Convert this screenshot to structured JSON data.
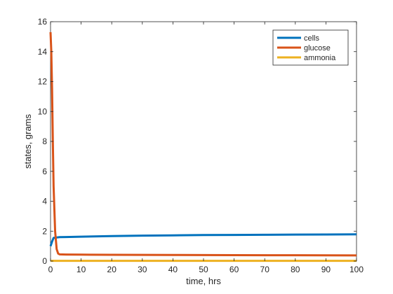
{
  "chart_data": {
    "type": "line",
    "title": "",
    "xlabel": "time, hrs",
    "ylabel": "states, grams",
    "xlim": [
      0,
      100
    ],
    "ylim": [
      0,
      16
    ],
    "xticks": [
      0,
      10,
      20,
      30,
      40,
      50,
      60,
      70,
      80,
      90,
      100
    ],
    "yticks": [
      0,
      2,
      4,
      6,
      8,
      10,
      12,
      14,
      16
    ],
    "grid": false,
    "legend_position": "top-right",
    "series": [
      {
        "name": "cells",
        "color": "#0072BD",
        "x": [
          0,
          0.5,
          1,
          2,
          3,
          5,
          10,
          20,
          30,
          40,
          50,
          60,
          70,
          80,
          90,
          100
        ],
        "y": [
          1.0,
          1.3,
          1.55,
          1.58,
          1.6,
          1.61,
          1.63,
          1.67,
          1.7,
          1.72,
          1.74,
          1.75,
          1.76,
          1.77,
          1.78,
          1.79
        ]
      },
      {
        "name": "glucose",
        "color": "#D95319",
        "x": [
          0,
          0.25,
          0.5,
          0.75,
          1,
          1.5,
          2,
          2.5,
          3,
          5,
          10,
          20,
          40,
          60,
          80,
          100
        ],
        "y": [
          15.3,
          14.0,
          11.5,
          8.0,
          5.0,
          2.0,
          0.8,
          0.5,
          0.45,
          0.44,
          0.43,
          0.42,
          0.41,
          0.4,
          0.39,
          0.38
        ]
      },
      {
        "name": "ammonia",
        "color": "#EDB120",
        "x": [
          0,
          100
        ],
        "y": [
          0.02,
          0.02
        ]
      }
    ]
  }
}
